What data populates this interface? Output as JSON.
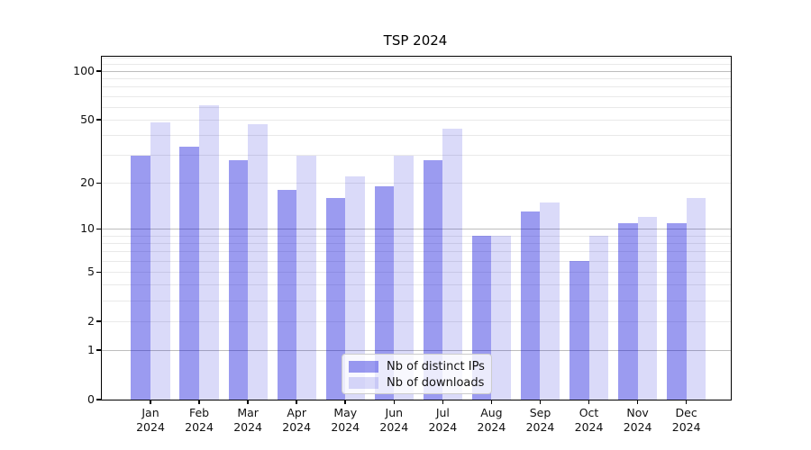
{
  "title": "TSP 2024",
  "chart_data": {
    "type": "bar",
    "title": "TSP 2024",
    "months": [
      "Jan",
      "Feb",
      "Mar",
      "Apr",
      "May",
      "Jun",
      "Jul",
      "Aug",
      "Sep",
      "Oct",
      "Nov",
      "Dec"
    ],
    "year": "2024",
    "series": [
      {
        "name": "Nb of distinct IPs",
        "color": "rgba(5,5,218,0.40)",
        "values": [
          30,
          34,
          28,
          18,
          16,
          19,
          28,
          9,
          13,
          6,
          11,
          11
        ]
      },
      {
        "name": "Nb of downloads",
        "color": "rgba(5,5,218,0.15)",
        "values": [
          48,
          62,
          47,
          30,
          22,
          30,
          44,
          9,
          15,
          9,
          12,
          16
        ]
      }
    ],
    "yscale": "log1p",
    "ylim": [
      0,
      123
    ],
    "yticks": [
      0,
      1,
      2,
      5,
      10,
      20,
      50,
      100
    ],
    "major_gridlines": [
      1,
      10,
      100
    ],
    "minor_gridlines": [
      2,
      3,
      4,
      5,
      6,
      7,
      8,
      9,
      20,
      30,
      40,
      50,
      60,
      70,
      80,
      90,
      110,
      120
    ],
    "xlabel": "",
    "ylabel": "",
    "legend_position": "lower center",
    "grid": true
  },
  "colors": {
    "bar_distinct_ips": "rgba(5,5,218,0.40)",
    "bar_downloads": "rgba(5,5,218,0.15)",
    "grid_major": "#bdbdbd",
    "grid_minor": "#e9e9e9",
    "spine": "#000000",
    "legend_border": "#cccccc",
    "legend_background": "rgba(255,255,255,0.8)"
  }
}
